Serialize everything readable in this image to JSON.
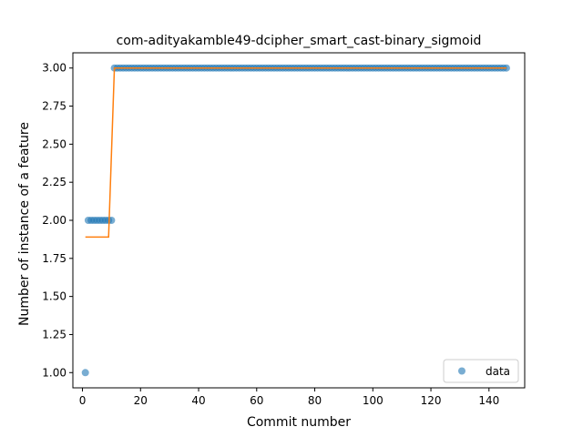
{
  "chart_data": {
    "type": "scatter",
    "title": "com-adityakamble49-dcipher_smart_cast-binary_sigmoid",
    "xlabel": "Commit number",
    "ylabel": "Number of instance of a feature",
    "xlim": [
      -3.3,
      152.3
    ],
    "ylim": [
      0.9,
      3.1
    ],
    "xticks": [
      0,
      20,
      40,
      60,
      80,
      100,
      120,
      140
    ],
    "yticks": [
      1.0,
      1.25,
      1.5,
      1.75,
      2.0,
      2.25,
      2.5,
      2.75,
      3.0
    ],
    "ytick_labels": [
      "1.00",
      "1.25",
      "1.50",
      "1.75",
      "2.00",
      "2.25",
      "2.50",
      "2.75",
      "3.00"
    ],
    "grid": false,
    "legend": {
      "placement": "lower-right",
      "entries": [
        "data"
      ]
    },
    "series": [
      {
        "name": "data",
        "kind": "scatter",
        "color": "#1f77b4",
        "segments": [
          {
            "x_from": 1,
            "x_to": 1,
            "y": 1.0
          },
          {
            "x_from": 2,
            "x_to": 10,
            "y": 2.0
          },
          {
            "x_from": 11,
            "x_to": 146,
            "y": 3.0
          }
        ]
      },
      {
        "kind": "line",
        "color": "#ff7f0e",
        "points": [
          [
            1,
            1.89
          ],
          [
            9,
            1.89
          ],
          [
            11,
            3.0
          ],
          [
            146,
            3.0
          ]
        ]
      }
    ]
  }
}
